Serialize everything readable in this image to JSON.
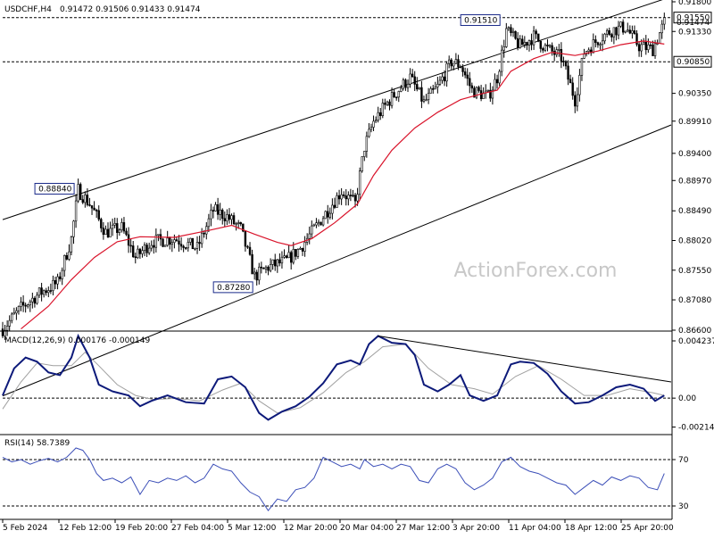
{
  "header": {
    "symbol": "USDCHF,H4",
    "ohlc": "0.91472 0.91506 0.91433 0.91474"
  },
  "watermark": "ActionForex.com",
  "colors": {
    "candle": "#000000",
    "ma": "#d9142b",
    "macd": "#0d1a7a",
    "signal": "#a0a0a0",
    "rsi": "#3c4fb8"
  },
  "chart_data": [
    {
      "type": "candlestick",
      "panel": "price",
      "ylim": [
        0.866,
        0.918
      ],
      "y_ticks": [
        "0.91800",
        "0.91330",
        "0.90350",
        "0.89910",
        "0.89400",
        "0.88970",
        "0.88490",
        "0.88020",
        "0.87550",
        "0.87080",
        "0.86600"
      ],
      "price_labels": [
        {
          "text": "0.91550",
          "value": 0.9155,
          "boxed": true
        },
        {
          "text": "0.91474",
          "value": 0.91474,
          "boxed": false
        },
        {
          "text": "0.90850",
          "value": 0.9085,
          "boxed": true
        }
      ],
      "annotations": [
        {
          "text": "0.88840",
          "value": 0.8884,
          "x_index": 32
        },
        {
          "text": "0.87280",
          "value": 0.8728,
          "x_index": 110
        },
        {
          "text": "0.91510",
          "value": 0.9151,
          "x_index": 218
        }
      ],
      "horizontal_levels": [
        0.9155,
        0.9085
      ],
      "trend_channel": {
        "upper": [
          {
            "x_index": 0,
            "value": 0.8835
          },
          {
            "x_index": 292,
            "value": 0.9188
          }
        ],
        "lower": [
          {
            "x_index": 113,
            "value": 0.8722
          },
          {
            "x_index": 292,
            "value": 0.8985
          }
        ]
      },
      "close_path": [
        [
          0,
          0.8662
        ],
        [
          8,
          0.8695
        ],
        [
          16,
          0.8718
        ],
        [
          24,
          0.8735
        ],
        [
          30,
          0.8805
        ],
        [
          33,
          0.8882
        ],
        [
          38,
          0.886
        ],
        [
          45,
          0.8815
        ],
        [
          52,
          0.8822
        ],
        [
          58,
          0.8775
        ],
        [
          65,
          0.88
        ],
        [
          75,
          0.8805
        ],
        [
          85,
          0.879
        ],
        [
          92,
          0.885
        ],
        [
          98,
          0.884
        ],
        [
          104,
          0.882
        ],
        [
          110,
          0.8745
        ],
        [
          116,
          0.876
        ],
        [
          124,
          0.877
        ],
        [
          130,
          0.879
        ],
        [
          136,
          0.882
        ],
        [
          142,
          0.885
        ],
        [
          148,
          0.888
        ],
        [
          154,
          0.886
        ],
        [
          158,
          0.895
        ],
        [
          162,
          0.899
        ],
        [
          168,
          0.902
        ],
        [
          174,
          0.9045
        ],
        [
          178,
          0.906
        ],
        [
          184,
          0.902
        ],
        [
          190,
          0.9045
        ],
        [
          196,
          0.9085
        ],
        [
          200,
          0.908
        ],
        [
          205,
          0.904
        ],
        [
          212,
          0.903
        ],
        [
          216,
          0.906
        ],
        [
          220,
          0.9135
        ],
        [
          226,
          0.911
        ],
        [
          232,
          0.9125
        ],
        [
          238,
          0.9105
        ],
        [
          244,
          0.9092
        ],
        [
          250,
          0.9025
        ],
        [
          254,
          0.91
        ],
        [
          260,
          0.912
        ],
        [
          266,
          0.9135
        ],
        [
          272,
          0.914
        ],
        [
          278,
          0.911
        ],
        [
          284,
          0.9105
        ],
        [
          289,
          0.9147
        ]
      ],
      "ma_path": [
        [
          8,
          0.8662
        ],
        [
          20,
          0.8698
        ],
        [
          30,
          0.874
        ],
        [
          40,
          0.8775
        ],
        [
          50,
          0.88
        ],
        [
          60,
          0.8808
        ],
        [
          75,
          0.8807
        ],
        [
          90,
          0.8818
        ],
        [
          100,
          0.8826
        ],
        [
          110,
          0.8812
        ],
        [
          120,
          0.8799
        ],
        [
          126,
          0.8794
        ],
        [
          135,
          0.8805
        ],
        [
          145,
          0.883
        ],
        [
          155,
          0.886
        ],
        [
          162,
          0.8905
        ],
        [
          170,
          0.8945
        ],
        [
          180,
          0.898
        ],
        [
          190,
          0.9005
        ],
        [
          200,
          0.9025
        ],
        [
          210,
          0.9035
        ],
        [
          216,
          0.904
        ],
        [
          222,
          0.907
        ],
        [
          232,
          0.909
        ],
        [
          240,
          0.91
        ],
        [
          250,
          0.9095
        ],
        [
          260,
          0.9102
        ],
        [
          270,
          0.9112
        ],
        [
          280,
          0.9118
        ],
        [
          289,
          0.9113
        ]
      ]
    },
    {
      "type": "line",
      "panel": "macd",
      "label": "MACD(12,26,9) 0.000176 -0.000149",
      "ylim": [
        -0.0025,
        0.0047
      ],
      "y_ticks": [
        "0.004237",
        "0.00",
        "-0.002142"
      ],
      "zero_line": 0.0,
      "macd_path": [
        [
          0,
          0.0002
        ],
        [
          5,
          0.0022
        ],
        [
          10,
          0.003
        ],
        [
          15,
          0.0027
        ],
        [
          20,
          0.0019
        ],
        [
          25,
          0.0017
        ],
        [
          30,
          0.003
        ],
        [
          33,
          0.0046
        ],
        [
          38,
          0.003
        ],
        [
          42,
          0.001
        ],
        [
          48,
          0.0005
        ],
        [
          55,
          0.0002
        ],
        [
          60,
          -0.0006
        ],
        [
          65,
          -0.0002
        ],
        [
          72,
          0.0002
        ],
        [
          80,
          -0.0003
        ],
        [
          88,
          -0.0004
        ],
        [
          94,
          0.0014
        ],
        [
          100,
          0.0016
        ],
        [
          106,
          0.0008
        ],
        [
          112,
          -0.0011
        ],
        [
          116,
          -0.0016
        ],
        [
          122,
          -0.001
        ],
        [
          128,
          -0.0006
        ],
        [
          134,
          0.0001
        ],
        [
          140,
          0.0011
        ],
        [
          146,
          0.0025
        ],
        [
          152,
          0.0028
        ],
        [
          156,
          0.0025
        ],
        [
          160,
          0.004
        ],
        [
          164,
          0.0046
        ],
        [
          170,
          0.0041
        ],
        [
          176,
          0.004
        ],
        [
          180,
          0.0032
        ],
        [
          184,
          0.001
        ],
        [
          190,
          0.0005
        ],
        [
          195,
          0.001
        ],
        [
          200,
          0.0017
        ],
        [
          204,
          0.0002
        ],
        [
          210,
          -0.0002
        ],
        [
          216,
          0.0002
        ],
        [
          222,
          0.0025
        ],
        [
          226,
          0.0027
        ],
        [
          232,
          0.0026
        ],
        [
          238,
          0.0018
        ],
        [
          244,
          0.0005
        ],
        [
          250,
          -0.0004
        ],
        [
          256,
          -0.0003
        ],
        [
          262,
          0.0002
        ],
        [
          268,
          0.0008
        ],
        [
          274,
          0.001
        ],
        [
          280,
          0.0007
        ],
        [
          285,
          -0.0002
        ],
        [
          289,
          0.0002
        ]
      ],
      "signal_path": [
        [
          0,
          -0.0008
        ],
        [
          8,
          0.0012
        ],
        [
          15,
          0.0026
        ],
        [
          22,
          0.0024
        ],
        [
          30,
          0.0024
        ],
        [
          36,
          0.0034
        ],
        [
          42,
          0.0024
        ],
        [
          50,
          0.001
        ],
        [
          58,
          0.0002
        ],
        [
          66,
          -0.0001
        ],
        [
          76,
          0.0
        ],
        [
          86,
          -0.0002
        ],
        [
          96,
          0.0006
        ],
        [
          104,
          0.0011
        ],
        [
          112,
          -0.0002
        ],
        [
          120,
          -0.0011
        ],
        [
          130,
          -0.0007
        ],
        [
          140,
          0.0004
        ],
        [
          150,
          0.0019
        ],
        [
          158,
          0.0027
        ],
        [
          166,
          0.0038
        ],
        [
          176,
          0.004
        ],
        [
          186,
          0.0022
        ],
        [
          196,
          0.001
        ],
        [
          206,
          0.0007
        ],
        [
          214,
          0.0003
        ],
        [
          224,
          0.0016
        ],
        [
          234,
          0.0024
        ],
        [
          244,
          0.0014
        ],
        [
          254,
          0.0002
        ],
        [
          264,
          0.0002
        ],
        [
          274,
          0.0007
        ],
        [
          284,
          0.0004
        ],
        [
          289,
          0.0002
        ]
      ],
      "trendline": [
        {
          "x_index": 164,
          "value": 0.0046
        },
        {
          "x_index": 292,
          "value": 0.0012
        }
      ]
    },
    {
      "type": "line",
      "panel": "rsi",
      "label": "RSI(14) 58.7389",
      "ylim": [
        20,
        90
      ],
      "y_ticks": [
        "70",
        "30"
      ],
      "levels": [
        70,
        30
      ],
      "rsi_path": [
        [
          0,
          72
        ],
        [
          4,
          68
        ],
        [
          8,
          70
        ],
        [
          12,
          66
        ],
        [
          16,
          69
        ],
        [
          20,
          71
        ],
        [
          24,
          68
        ],
        [
          28,
          72
        ],
        [
          32,
          80
        ],
        [
          35,
          78
        ],
        [
          38,
          70
        ],
        [
          41,
          58
        ],
        [
          44,
          52
        ],
        [
          48,
          54
        ],
        [
          52,
          50
        ],
        [
          56,
          55
        ],
        [
          60,
          40
        ],
        [
          64,
          52
        ],
        [
          68,
          50
        ],
        [
          72,
          54
        ],
        [
          76,
          52
        ],
        [
          80,
          56
        ],
        [
          84,
          50
        ],
        [
          88,
          54
        ],
        [
          92,
          66
        ],
        [
          96,
          62
        ],
        [
          100,
          60
        ],
        [
          104,
          50
        ],
        [
          108,
          42
        ],
        [
          112,
          38
        ],
        [
          116,
          26
        ],
        [
          120,
          36
        ],
        [
          124,
          34
        ],
        [
          128,
          44
        ],
        [
          132,
          46
        ],
        [
          136,
          54
        ],
        [
          140,
          72
        ],
        [
          144,
          68
        ],
        [
          148,
          64
        ],
        [
          152,
          66
        ],
        [
          156,
          62
        ],
        [
          158,
          70
        ],
        [
          162,
          64
        ],
        [
          166,
          66
        ],
        [
          170,
          62
        ],
        [
          174,
          66
        ],
        [
          178,
          64
        ],
        [
          182,
          52
        ],
        [
          186,
          50
        ],
        [
          190,
          62
        ],
        [
          194,
          66
        ],
        [
          198,
          62
        ],
        [
          202,
          50
        ],
        [
          206,
          44
        ],
        [
          210,
          48
        ],
        [
          214,
          54
        ],
        [
          218,
          68
        ],
        [
          222,
          72
        ],
        [
          226,
          64
        ],
        [
          230,
          60
        ],
        [
          234,
          58
        ],
        [
          238,
          54
        ],
        [
          242,
          50
        ],
        [
          246,
          48
        ],
        [
          250,
          40
        ],
        [
          254,
          46
        ],
        [
          258,
          52
        ],
        [
          262,
          48
        ],
        [
          266,
          55
        ],
        [
          270,
          52
        ],
        [
          274,
          56
        ],
        [
          278,
          54
        ],
        [
          282,
          46
        ],
        [
          286,
          44
        ],
        [
          289,
          58
        ]
      ]
    }
  ],
  "x_axis": {
    "tick_labels": [
      "5 Feb 2024",
      "12 Feb 12:00",
      "19 Feb 20:00",
      "27 Feb 04:00",
      "5 Mar 12:00",
      "12 Mar 20:00",
      "20 Mar 04:00",
      "27 Mar 12:00",
      "3 Apr 20:00",
      "11 Apr 04:00",
      "18 Apr 12:00",
      "25 Apr 20:00"
    ]
  }
}
